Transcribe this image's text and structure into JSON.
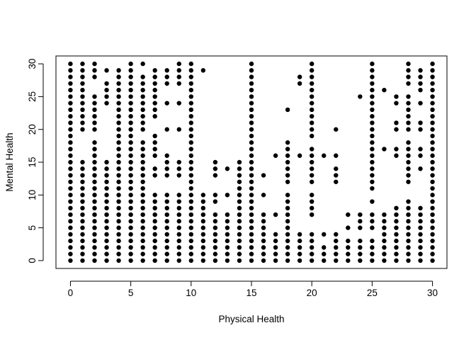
{
  "chart_data": {
    "type": "scatter",
    "title": "",
    "xlabel": "Physical Health",
    "ylabel": "Mental Health",
    "xlim": [
      -1.2,
      31.2
    ],
    "ylim": [
      -1.2,
      31.2
    ],
    "x_ticks": [
      0,
      5,
      10,
      15,
      20,
      25,
      30
    ],
    "y_ticks": [
      0,
      5,
      10,
      15,
      20,
      25,
      30
    ],
    "grid": false,
    "legend": "none",
    "marker_color": "#000000",
    "missing_points": {
      "3": [
        21
      ],
      "4": [
        23,
        24,
        25
      ],
      "5": [
        17,
        19,
        20,
        21,
        22
      ],
      "6": [
        17,
        19,
        20,
        21,
        22,
        23
      ],
      "7": [
        19,
        21,
        22
      ],
      "8": [
        12,
        13,
        16,
        17,
        19,
        21,
        22,
        23,
        24,
        25,
        26
      ],
      "9": [
        13,
        16,
        17,
        19,
        21,
        22,
        23,
        24,
        26,
        27,
        29
      ],
      "10": [
        17,
        19,
        21,
        22,
        23,
        24,
        25,
        26,
        27,
        28,
        29
      ],
      "11": [
        7,
        8,
        9,
        11,
        12,
        13,
        16,
        17,
        18,
        19,
        20,
        21,
        22,
        23,
        24,
        26,
        27,
        28,
        29
      ],
      "12": [
        7,
        8,
        9,
        11,
        12,
        13,
        16,
        17,
        19,
        21,
        23,
        24,
        26,
        27,
        29
      ],
      "13": [
        11,
        13,
        17,
        19,
        21,
        23,
        24,
        26,
        27,
        29
      ],
      "14": [
        11,
        16,
        17,
        19,
        21,
        23,
        24,
        26,
        27
      ],
      "15": [
        7,
        11,
        13,
        16,
        17,
        19,
        21,
        22,
        23,
        24,
        26,
        27,
        29
      ],
      "16": [
        1,
        3,
        9,
        11,
        12,
        13,
        14,
        16,
        23,
        24,
        26
      ],
      "17": [
        1,
        3,
        8,
        9,
        11,
        12,
        13,
        14,
        16,
        17,
        19,
        21,
        22,
        23,
        24
      ],
      "18": [
        1,
        3,
        8,
        9,
        11,
        12,
        13,
        14,
        16,
        17,
        19,
        20,
        21,
        22,
        23,
        24,
        26,
        27,
        29
      ],
      "19": [
        1,
        2,
        3,
        6,
        8,
        9,
        11,
        12,
        13,
        14,
        16,
        17,
        18,
        19,
        21,
        22,
        23,
        24,
        26,
        27,
        28,
        29
      ],
      "20": [
        3,
        7,
        11,
        12,
        13,
        14,
        16,
        17,
        18,
        19,
        21,
        23,
        24,
        26
      ],
      "21": [
        3,
        7,
        8,
        9,
        11,
        12,
        13,
        14,
        16,
        17,
        18,
        19,
        21,
        22,
        23,
        24,
        26
      ],
      "22": [
        3,
        8,
        9,
        11,
        12,
        13,
        14,
        16,
        17,
        18,
        19,
        21,
        22,
        23,
        24,
        26,
        27,
        29
      ],
      "23": [
        3,
        8,
        9,
        11,
        12,
        13,
        14,
        16,
        17,
        19,
        21,
        22,
        23,
        24,
        26,
        27,
        29
      ],
      "24": [
        11,
        12,
        13,
        14,
        16,
        17,
        18,
        19,
        21,
        22,
        23,
        24,
        26
      ],
      "25": [
        8,
        9,
        11,
        12,
        13,
        14,
        16,
        17,
        18,
        19,
        21,
        22,
        23,
        26,
        29
      ],
      "26": [
        2,
        8,
        9,
        11,
        12,
        13,
        14,
        16,
        17,
        18,
        19,
        21,
        22,
        23,
        24,
        27,
        28
      ],
      "27": [
        2,
        11,
        12,
        13,
        14,
        16,
        17,
        18,
        21,
        22,
        23,
        24,
        26,
        27
      ],
      "28": [
        3,
        11,
        12,
        13,
        14,
        16,
        17,
        18,
        21,
        22,
        23,
        24,
        26,
        27
      ],
      "29": [
        6,
        12,
        13,
        14,
        16,
        17,
        18,
        19,
        21,
        22,
        23,
        24,
        26,
        27
      ],
      "30": [
        3,
        4,
        7,
        8,
        11,
        12,
        13,
        14,
        16,
        17,
        18,
        19,
        21,
        22,
        23,
        24,
        26,
        27,
        29
      ]
    },
    "points_note_x_by_y": "Each x-value (0-30) plotted for every y-value (0-30) except those listed under missing_points[y] (list of x-values without a point)."
  }
}
